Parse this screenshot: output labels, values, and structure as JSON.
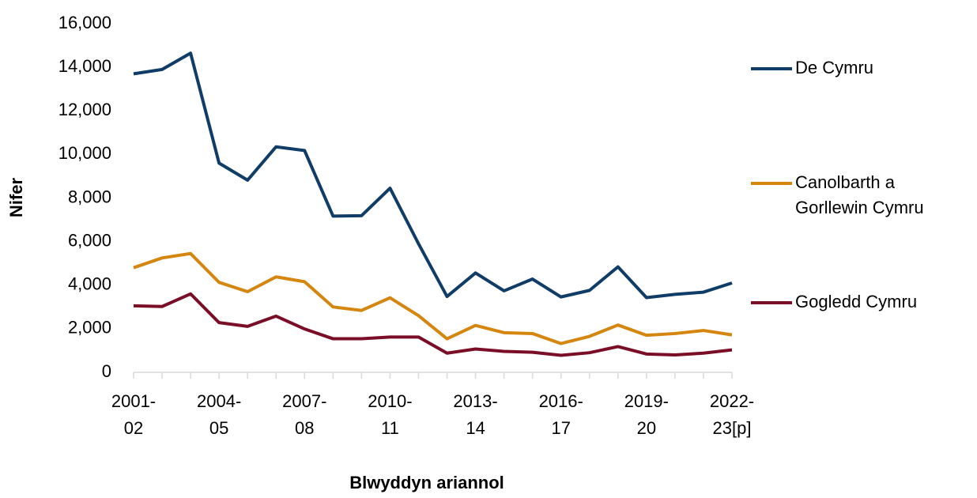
{
  "chart_data": {
    "type": "line",
    "x_label": "Blwyddyn ariannol",
    "y_label": "Nifer",
    "categories": [
      "2001-02",
      null,
      null,
      "2004-05",
      null,
      null,
      "2007-08",
      null,
      null,
      "2010-11",
      null,
      null,
      "2013-14",
      null,
      null,
      "2016-17",
      null,
      null,
      "2019-20",
      null,
      null,
      "2022-23[p]"
    ],
    "series": [
      {
        "name": "De Cymru",
        "color": "#0f3d68",
        "values": [
          13700,
          13900,
          14650,
          9600,
          8820,
          10350,
          10180,
          7170,
          7190,
          8450,
          5900,
          3480,
          4560,
          3740,
          4280,
          3460,
          3760,
          4840,
          3430,
          3580,
          3680,
          4100
        ]
      },
      {
        "name": "Canolbarth a Gorllewin Cymru",
        "color": "#d4860f",
        "values": [
          4800,
          5250,
          5450,
          4130,
          3700,
          4380,
          4160,
          3000,
          2840,
          3420,
          2600,
          1540,
          2150,
          1820,
          1780,
          1320,
          1650,
          2170,
          1700,
          1780,
          1920,
          1720
        ]
      },
      {
        "name": "Gogledd Cymru",
        "color": "#7a0e26",
        "values": [
          3050,
          3020,
          3600,
          2280,
          2110,
          2580,
          1990,
          1540,
          1540,
          1620,
          1620,
          880,
          1070,
          960,
          920,
          780,
          900,
          1180,
          840,
          800,
          880,
          1030
        ]
      }
    ],
    "ylim": [
      0,
      16000
    ],
    "yticks": [
      0,
      {
        "value": 2000,
        "label": "2,000"
      },
      {
        "value": 4000,
        "label": "4,000"
      },
      {
        "value": 6000,
        "label": "6,000"
      },
      {
        "value": 8000,
        "label": "8,000"
      },
      {
        "value": 10000,
        "label": "10,000"
      },
      {
        "value": 12000,
        "label": "12,000"
      },
      {
        "value": 14000,
        "label": "14,000"
      },
      {
        "value": 16000,
        "label": "16,000"
      }
    ],
    "grid": false,
    "legend": "right"
  }
}
